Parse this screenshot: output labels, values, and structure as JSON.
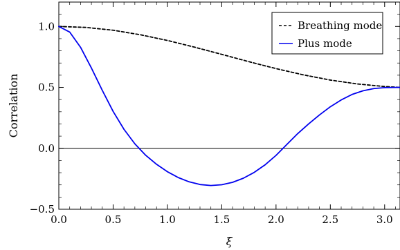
{
  "chart_data": {
    "type": "line",
    "title": "",
    "xlabel": "ξ",
    "ylabel": "Correlation",
    "xlim": [
      0,
      3.14159
    ],
    "ylim": [
      -0.5,
      1.2
    ],
    "x_ticks": [
      0.0,
      0.5,
      1.0,
      1.5,
      2.0,
      2.5,
      3.0
    ],
    "x_tick_labels": [
      "0.0",
      "0.5",
      "1.0",
      "1.5",
      "2.0",
      "2.5",
      "3.0"
    ],
    "y_ticks": [
      -0.5,
      0.0,
      0.5,
      1.0
    ],
    "y_tick_labels": [
      "−0.5",
      "0.0",
      "0.5",
      "1.0"
    ],
    "legend_position": "top-right",
    "grid": false,
    "reference_line_y": 0.0,
    "series": [
      {
        "name": "Breathing mode",
        "color": "#000000",
        "dash": "dashed",
        "x": [
          0.0,
          0.25,
          0.5,
          0.75,
          1.0,
          1.25,
          1.5,
          1.75,
          2.0,
          2.25,
          2.5,
          2.75,
          3.0,
          3.14159
        ],
        "y": [
          1.0,
          0.992,
          0.969,
          0.932,
          0.885,
          0.83,
          0.771,
          0.711,
          0.654,
          0.603,
          0.56,
          0.528,
          0.507,
          0.5
        ]
      },
      {
        "name": "Plus mode",
        "color": "#0000ee",
        "dash": "solid",
        "x": [
          0.0,
          0.1,
          0.2,
          0.3,
          0.4,
          0.5,
          0.6,
          0.7,
          0.8,
          0.9,
          1.0,
          1.1,
          1.2,
          1.3,
          1.4,
          1.5,
          1.6,
          1.7,
          1.8,
          1.9,
          2.0,
          2.1,
          2.2,
          2.3,
          2.4,
          2.5,
          2.6,
          2.7,
          2.8,
          2.9,
          3.0,
          3.14159
        ],
        "y": [
          1.0,
          0.954,
          0.829,
          0.659,
          0.476,
          0.303,
          0.156,
          0.037,
          -0.057,
          -0.131,
          -0.192,
          -0.24,
          -0.275,
          -0.297,
          -0.305,
          -0.299,
          -0.279,
          -0.245,
          -0.197,
          -0.135,
          -0.058,
          0.032,
          0.121,
          0.2,
          0.274,
          0.341,
          0.397,
          0.442,
          0.472,
          0.49,
          0.498,
          0.5
        ]
      }
    ]
  }
}
